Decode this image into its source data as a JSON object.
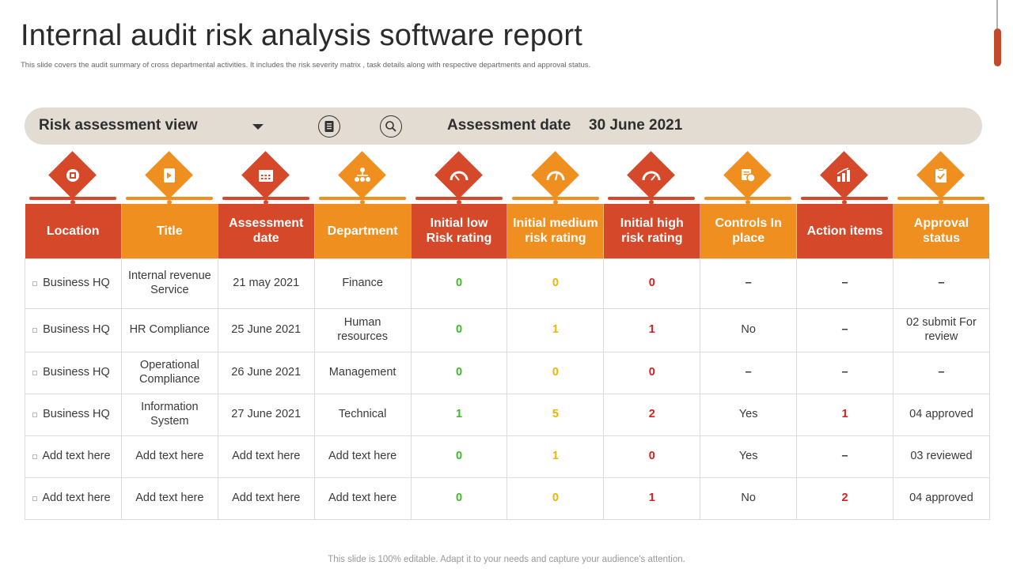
{
  "page": {
    "title": "Internal audit risk analysis software report",
    "subtitle": "This slide covers the audit summary of cross departmental activities. It includes the risk severity matrix , task details along  with respective departments and approval status.",
    "footer": "This slide is 100% editable. Adapt it to your needs and capture your audience's attention."
  },
  "toolbar": {
    "view_label": "Risk assessment view",
    "date_label": "Assessment date",
    "date_value": "30 June 2021"
  },
  "colors": {
    "red": "#d6482a",
    "orange": "#ef8f1f",
    "green": "#3dbb2c",
    "yellow": "#f0b400",
    "alert_red": "#d6201e",
    "toolbar_bg": "#e3dcd2"
  },
  "icons": [
    "location-icon",
    "title-icon",
    "calendar-icon",
    "department-icon",
    "gauge-low-icon",
    "gauge-medium-icon",
    "gauge-high-icon",
    "controls-icon",
    "action-items-icon",
    "approval-icon"
  ],
  "table": {
    "headers": [
      "Location",
      "Title",
      "Assessment date",
      "Department",
      "Initial low Risk rating",
      "Initial medium risk rating",
      "Initial high risk rating",
      "Controls In place",
      "Action items",
      "Approval status"
    ],
    "rows": [
      [
        "Business HQ",
        "Internal revenue Service",
        "21 may 2021",
        "Finance",
        "0",
        "0",
        "0",
        "–",
        "–",
        "–"
      ],
      [
        "Business HQ",
        "HR Compliance",
        "25 June 2021",
        "Human resources",
        "0",
        "1",
        "1",
        "No",
        "–",
        "02 submit For review"
      ],
      [
        "Business HQ",
        "Operational Compliance",
        "26 June 2021",
        "Management",
        "0",
        "0",
        "0",
        "–",
        "–",
        "–"
      ],
      [
        "Business HQ",
        "Information System",
        "27 June 2021",
        "Technical",
        "1",
        "5",
        "2",
        "Yes",
        "1",
        "04 approved"
      ],
      [
        "Add text here",
        "Add text here",
        "Add text here",
        "Add text here",
        "0",
        "1",
        "0",
        "Yes",
        "–",
        "03 reviewed"
      ],
      [
        "Add text here",
        "Add text here",
        "Add text here",
        "Add text here",
        "0",
        "0",
        "1",
        "No",
        "2",
        "04 approved"
      ]
    ]
  }
}
